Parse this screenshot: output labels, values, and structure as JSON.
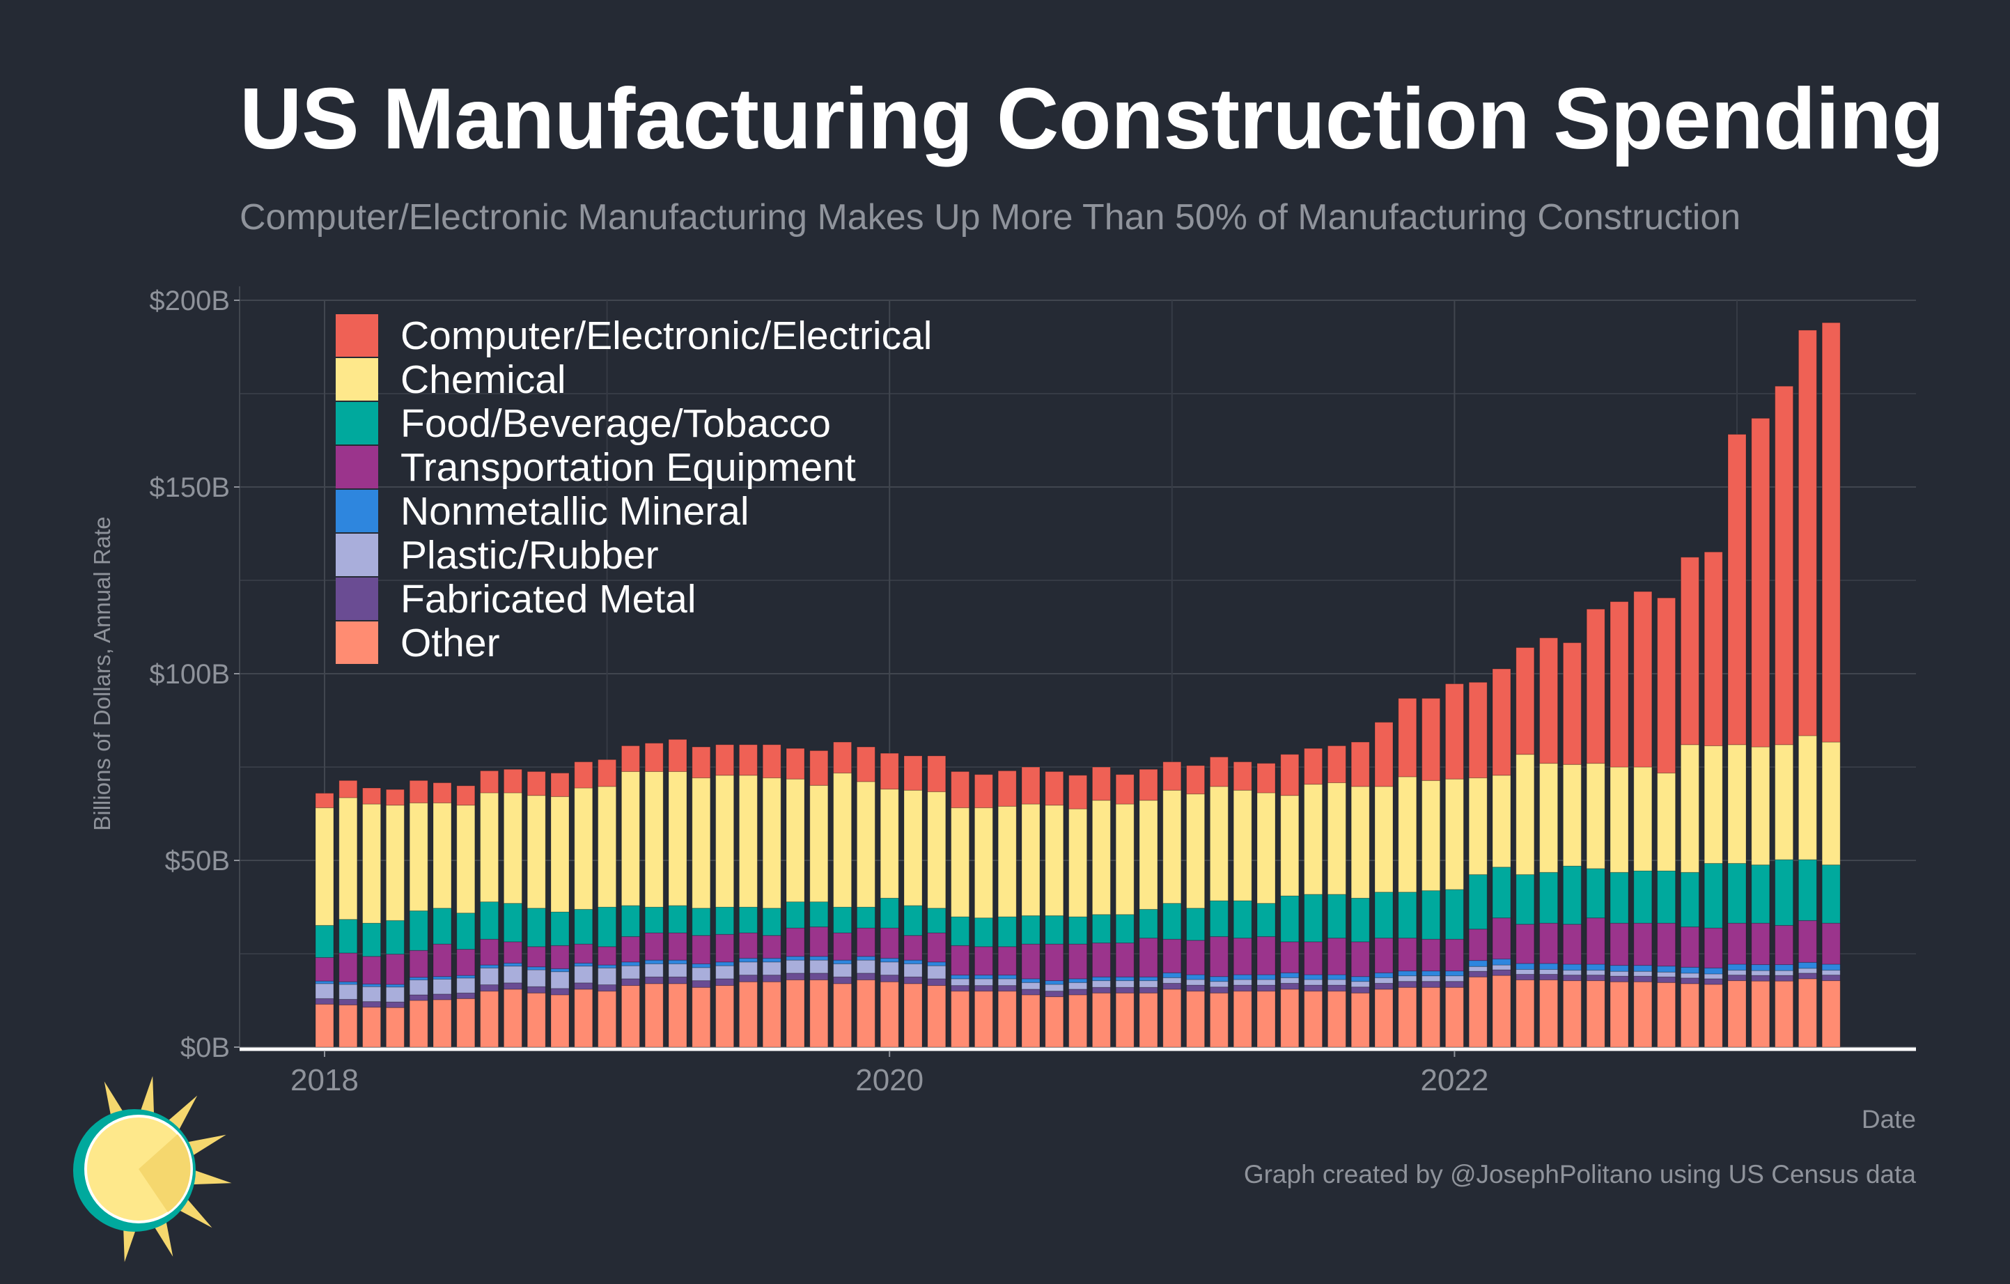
{
  "title": "US Manufacturing Construction Spending",
  "subtitle": "Computer/Electronic Manufacturing Makes Up More Than 50% of Manufacturing Construction",
  "caption": "Graph created by @JosephPolitano using US Census data",
  "chart_data": {
    "type": "bar",
    "stacked": true,
    "xlabel": "Date",
    "ylabel": "Billions of Dollars, Annual Rate",
    "ylim": [
      0,
      200
    ],
    "yticks": [
      0,
      50,
      100,
      150,
      200
    ],
    "ytick_labels": [
      "$0B",
      "$50B",
      "$100B",
      "$150B",
      "$200B"
    ],
    "xtick_labels": [
      {
        "label": "2018",
        "date": "2018-01"
      },
      {
        "label": "2020",
        "date": "2020-01"
      },
      {
        "label": "2022",
        "date": "2022-01"
      }
    ],
    "grid": true,
    "legend_position": "top-left",
    "x": [
      "2018-01",
      "2018-02",
      "2018-03",
      "2018-04",
      "2018-05",
      "2018-06",
      "2018-07",
      "2018-08",
      "2018-09",
      "2018-10",
      "2018-11",
      "2018-12",
      "2019-01",
      "2019-02",
      "2019-03",
      "2019-04",
      "2019-05",
      "2019-06",
      "2019-07",
      "2019-08",
      "2019-09",
      "2019-10",
      "2019-11",
      "2019-12",
      "2020-01",
      "2020-02",
      "2020-03",
      "2020-04",
      "2020-05",
      "2020-06",
      "2020-07",
      "2020-08",
      "2020-09",
      "2020-10",
      "2020-11",
      "2020-12",
      "2021-01",
      "2021-02",
      "2021-03",
      "2021-04",
      "2021-05",
      "2021-06",
      "2021-07",
      "2021-08",
      "2021-09",
      "2021-10",
      "2021-11",
      "2021-12",
      "2022-01",
      "2022-02",
      "2022-03",
      "2022-04",
      "2022-05",
      "2022-06",
      "2022-07",
      "2022-08",
      "2022-09",
      "2022-10",
      "2022-11",
      "2022-12",
      "2023-01",
      "2023-02",
      "2023-03",
      "2023-04",
      "2023-05"
    ],
    "series": [
      {
        "name": "Computer/Electronic/Electrical",
        "color": "#ef6155",
        "values": [
          3.9,
          4.6,
          4.3,
          4.2,
          6.0,
          5.4,
          5.2,
          5.9,
          6.3,
          6.4,
          6.3,
          7.0,
          7.2,
          6.9,
          7.6,
          8.6,
          8.3,
          8.2,
          8.2,
          8.9,
          8.2,
          9.3,
          8.3,
          9.3,
          9.6,
          9.2,
          9.6,
          9.7,
          8.9,
          9.5,
          9.9,
          9.0,
          9.0,
          8.9,
          7.9,
          8.3,
          7.6,
          7.6,
          7.9,
          7.6,
          7.9,
          11.0,
          9.6,
          9.9,
          11.9,
          17.2,
          21.0,
          22.0,
          25.5,
          25.6,
          28.5,
          28.6,
          33.6,
          32.6,
          41.3,
          44.3,
          47.0,
          46.9,
          50.2,
          51.9,
          83.1,
          88.0,
          96.0,
          108.6,
          112.3
        ]
      },
      {
        "name": "Chemical",
        "color": "#fee88b",
        "values": [
          31.5,
          32.6,
          31.9,
          30.9,
          28.9,
          28.2,
          28.9,
          29.2,
          29.6,
          30.2,
          30.9,
          32.5,
          32.3,
          35.9,
          36.3,
          35.9,
          34.9,
          35.3,
          35.3,
          34.9,
          32.9,
          31.2,
          35.9,
          33.6,
          29.2,
          30.9,
          31.2,
          29.2,
          29.5,
          29.6,
          29.9,
          29.6,
          28.9,
          30.6,
          29.6,
          29.2,
          30.3,
          30.6,
          30.6,
          29.6,
          29.6,
          26.9,
          29.5,
          29.9,
          29.9,
          28.3,
          30.9,
          29.5,
          29.6,
          25.9,
          24.6,
          32.2,
          29.2,
          27.2,
          28.2,
          28.2,
          27.8,
          26.2,
          34.2,
          31.5,
          31.8,
          31.6,
          30.8,
          33.2,
          32.9
        ]
      },
      {
        "name": "Food/Beverage/Tobacco",
        "color": "#00a99d",
        "values": [
          8.6,
          9.0,
          8.9,
          9.0,
          10.6,
          9.6,
          9.7,
          10.0,
          10.3,
          10.3,
          9.0,
          9.3,
          10.6,
          8.3,
          6.9,
          7.3,
          7.3,
          7.3,
          6.9,
          7.3,
          7.0,
          6.7,
          6.9,
          5.6,
          8.0,
          8.0,
          6.6,
          7.7,
          7.7,
          8.0,
          7.6,
          7.6,
          7.3,
          7.6,
          7.6,
          7.7,
          9.6,
          8.6,
          9.6,
          10.0,
          8.9,
          12.3,
          12.7,
          11.7,
          11.7,
          12.3,
          12.3,
          13.0,
          13.3,
          14.6,
          13.6,
          13.3,
          13.6,
          15.6,
          13.2,
          13.6,
          14.0,
          14.0,
          14.6,
          17.3,
          16.0,
          15.6,
          17.6,
          16.3,
          15.6
        ]
      },
      {
        "name": "Transportation Equipment",
        "color": "#9b348c",
        "values": [
          6.3,
          7.7,
          7.4,
          8.1,
          7.2,
          8.7,
          7.0,
          6.9,
          5.7,
          5.4,
          6.2,
          5.1,
          4.9,
          6.8,
          7.3,
          7.3,
          7.6,
          7.4,
          6.8,
          6.1,
          7.6,
          7.9,
          7.3,
          7.6,
          8.1,
          6.6,
          7.8,
          7.9,
          7.6,
          7.6,
          9.3,
          9.8,
          9.3,
          9.1,
          9.1,
          10.4,
          9.0,
          9.2,
          10.7,
          9.8,
          10.2,
          8.3,
          8.8,
          9.8,
          9.3,
          9.3,
          8.8,
          8.5,
          8.5,
          8.4,
          11.0,
          10.5,
          10.8,
          10.7,
          12.4,
          11.3,
          11.3,
          11.5,
          10.8,
          10.7,
          11.0,
          11.1,
          10.5,
          11.2,
          11.0
        ]
      },
      {
        "name": "Nonmetallic Mineral",
        "color": "#2e86de",
        "values": [
          0.7,
          0.7,
          0.7,
          0.7,
          0.7,
          0.7,
          0.7,
          0.8,
          0.8,
          0.8,
          0.8,
          0.8,
          0.8,
          1.0,
          1.0,
          1.0,
          1.0,
          1.0,
          1.0,
          1.0,
          1.0,
          1.0,
          1.0,
          1.0,
          1.0,
          1.0,
          1.0,
          1.0,
          1.0,
          1.0,
          1.0,
          1.0,
          1.0,
          1.0,
          1.0,
          1.0,
          1.3,
          1.3,
          1.3,
          1.3,
          1.3,
          1.3,
          1.3,
          1.3,
          1.3,
          1.3,
          1.3,
          1.3,
          1.3,
          1.6,
          1.6,
          1.6,
          1.6,
          1.6,
          1.6,
          1.6,
          1.6,
          1.6,
          1.6,
          1.6,
          1.6,
          1.6,
          1.6,
          1.6,
          1.6
        ]
      },
      {
        "name": "Plastic/Rubber",
        "color": "#a9aedb",
        "values": [
          4.0,
          4.0,
          4.0,
          4.0,
          4.0,
          4.0,
          4.0,
          4.5,
          4.5,
          4.5,
          4.5,
          4.5,
          4.5,
          3.5,
          3.5,
          3.5,
          3.5,
          3.5,
          3.5,
          3.5,
          3.5,
          3.5,
          3.5,
          3.5,
          3.5,
          3.5,
          3.5,
          1.8,
          1.8,
          1.8,
          1.8,
          1.8,
          1.8,
          1.8,
          1.8,
          1.8,
          1.5,
          1.5,
          1.5,
          1.5,
          1.5,
          1.5,
          1.5,
          1.5,
          1.5,
          1.5,
          1.5,
          1.5,
          1.5,
          1.3,
          1.3,
          1.3,
          1.3,
          1.3,
          1.3,
          1.3,
          1.3,
          1.3,
          1.3,
          1.3,
          1.3,
          1.3,
          1.3,
          1.3,
          1.3
        ]
      },
      {
        "name": "Fabricated Metal",
        "color": "#6a4c93",
        "values": [
          1.5,
          1.5,
          1.5,
          1.5,
          1.5,
          1.5,
          1.5,
          1.7,
          1.7,
          1.7,
          1.7,
          1.7,
          1.7,
          1.8,
          1.8,
          1.8,
          1.8,
          1.8,
          1.8,
          1.8,
          1.8,
          1.8,
          1.8,
          1.8,
          1.8,
          1.8,
          1.8,
          1.5,
          1.5,
          1.5,
          1.5,
          1.5,
          1.5,
          1.5,
          1.5,
          1.5,
          1.6,
          1.6,
          1.6,
          1.6,
          1.6,
          1.6,
          1.6,
          1.6,
          1.6,
          1.6,
          1.6,
          1.6,
          1.6,
          1.5,
          1.5,
          1.5,
          1.5,
          1.5,
          1.5,
          1.5,
          1.5,
          1.5,
          1.5,
          1.5,
          1.5,
          1.5,
          1.5,
          1.5,
          1.5
        ]
      },
      {
        "name": "Other",
        "color": "#ff8c72",
        "values": [
          11.5,
          11.3,
          10.7,
          10.6,
          12.5,
          12.7,
          13.0,
          15.0,
          15.5,
          14.5,
          14.0,
          15.5,
          15.0,
          16.5,
          17.0,
          17.0,
          16.0,
          16.5,
          17.5,
          17.5,
          18.0,
          18.0,
          17.0,
          18.0,
          17.5,
          17.0,
          16.5,
          15.0,
          15.0,
          15.0,
          14.0,
          13.5,
          14.0,
          14.5,
          14.5,
          14.5,
          15.5,
          15.0,
          14.5,
          15.0,
          15.0,
          15.5,
          15.0,
          15.0,
          14.5,
          15.5,
          16.0,
          16.0,
          16.0,
          18.8,
          19.2,
          18.0,
          18.0,
          17.8,
          17.8,
          17.5,
          17.5,
          17.3,
          17.0,
          16.8,
          17.8,
          17.7,
          17.7,
          18.3,
          17.8
        ]
      }
    ]
  },
  "logo": {
    "icon": "sun-icon",
    "colors": [
      "#fee88b",
      "#f5d76e",
      "#00a99d"
    ]
  }
}
